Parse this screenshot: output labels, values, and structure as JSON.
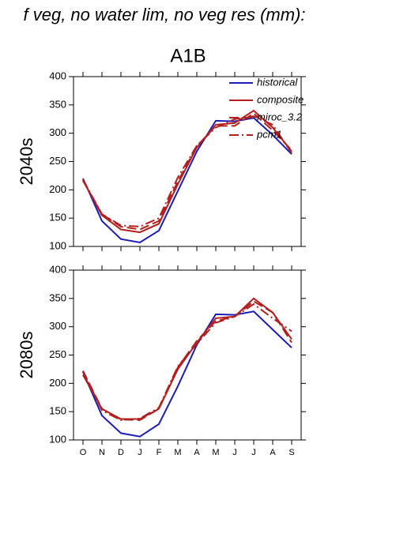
{
  "title": "f veg, no water lim, no veg res (mm):",
  "subtitle": "A1B",
  "chart_data": [
    {
      "type": "line",
      "ylabel": "2040s",
      "categories": [
        null,
        null,
        null,
        null,
        null,
        null,
        null,
        null,
        null,
        null,
        null,
        null
      ],
      "ylim": [
        100,
        400
      ],
      "yticks": [
        100,
        150,
        200,
        250,
        300,
        350,
        400
      ],
      "grid": false,
      "legend": "upper right",
      "series": [
        {
          "name": "historical",
          "color": "#1c1cb4",
          "dash": "solid",
          "values": [
            220,
            145,
            113,
            107,
            128,
            198,
            268,
            322,
            321,
            327,
            297,
            263
          ]
        },
        {
          "name": "composite",
          "color": "#b21f1f",
          "dash": "solid",
          "values": [
            217,
            155,
            130,
            125,
            140,
            210,
            275,
            315,
            318,
            340,
            310,
            268
          ]
        },
        {
          "name": "miroc_3.2",
          "color": "#b21f1f",
          "dash": "long-dash",
          "values": [
            216,
            157,
            135,
            130,
            145,
            215,
            277,
            313,
            313,
            335,
            305,
            270
          ]
        },
        {
          "name": "pcm1",
          "color": "#b21f1f",
          "dash": "dash-dot",
          "values": [
            218,
            157,
            137,
            135,
            150,
            222,
            278,
            310,
            325,
            330,
            315,
            265
          ]
        }
      ]
    },
    {
      "type": "line",
      "ylabel": "2080s",
      "categories": [
        "O",
        "N",
        "D",
        "J",
        "F",
        "M",
        "A",
        "M",
        "J",
        "J",
        "A",
        "S"
      ],
      "ylim": [
        100,
        400
      ],
      "yticks": [
        100,
        150,
        200,
        250,
        300,
        350,
        400
      ],
      "grid": false,
      "series": [
        {
          "color": "#1c1cb4",
          "dash": "solid",
          "values": [
            220,
            143,
            112,
            106,
            128,
            195,
            268,
            322,
            321,
            327,
            295,
            263
          ]
        },
        {
          "color": "#b21f1f",
          "dash": "solid",
          "values": [
            215,
            155,
            137,
            137,
            155,
            225,
            272,
            315,
            318,
            350,
            325,
            278
          ]
        },
        {
          "color": "#b21f1f",
          "dash": "long-dash",
          "values": [
            222,
            155,
            136,
            135,
            155,
            228,
            275,
            310,
            318,
            345,
            325,
            272
          ]
        },
        {
          "color": "#b21f1f",
          "dash": "dash-dot",
          "values": [
            222,
            152,
            135,
            138,
            157,
            230,
            270,
            307,
            318,
            340,
            315,
            292
          ]
        }
      ]
    }
  ]
}
